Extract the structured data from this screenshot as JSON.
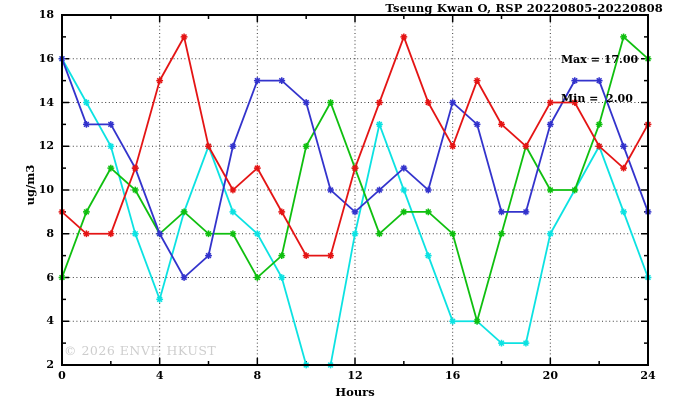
{
  "watermark": "© 2026 ENVF, HKUST",
  "annotation": {
    "max_label": "Max = 17.00",
    "min_label": "Min =  2.00"
  },
  "chart_data": {
    "type": "line",
    "title": "Tseung Kwan O, RSP 20220805-20220808",
    "xlabel": "Hours",
    "ylabel": "ug/m3",
    "xlim": [
      0,
      24
    ],
    "ylim": [
      2,
      18
    ],
    "x_major_ticks": [
      0,
      4,
      8,
      12,
      16,
      20,
      24
    ],
    "x_minor_ticks": [
      2,
      6,
      10,
      14,
      18,
      22
    ],
    "y_major_ticks": [
      2,
      4,
      6,
      8,
      10,
      12,
      14,
      16,
      18
    ],
    "y_minor_ticks": [
      3,
      5,
      7,
      9,
      11,
      13,
      15,
      17
    ],
    "grid_x": [
      4,
      8,
      12,
      16,
      20
    ],
    "grid_y": [
      4,
      6,
      8,
      10,
      12,
      14,
      16
    ],
    "grid_style": "dotted",
    "legend_position": "none",
    "marker": "asterisk",
    "stats": {
      "max": 17.0,
      "min": 2.0
    },
    "x": [
      0,
      1,
      2,
      3,
      4,
      5,
      6,
      7,
      8,
      9,
      10,
      11,
      12,
      13,
      14,
      15,
      16,
      17,
      18,
      19,
      20,
      21,
      22,
      23,
      24
    ],
    "series": [
      {
        "name": "series-cyan",
        "color": "#0ce2e2",
        "values": [
          16,
          14,
          12,
          8,
          5,
          9,
          12,
          9,
          8,
          6,
          2,
          2,
          8,
          13,
          10,
          7,
          4,
          4,
          3,
          3,
          8,
          10,
          12,
          9,
          6
        ]
      },
      {
        "name": "series-green",
        "color": "#0fbf0f",
        "values": [
          6,
          9,
          11,
          10,
          8,
          9,
          8,
          8,
          6,
          7,
          12,
          14,
          11,
          8,
          9,
          9,
          8,
          4,
          8,
          12,
          10,
          10,
          13,
          17,
          16
        ]
      },
      {
        "name": "series-blue",
        "color": "#3333cc",
        "values": [
          16,
          13,
          13,
          11,
          8,
          6,
          7,
          12,
          15,
          15,
          14,
          10,
          9,
          10,
          11,
          10,
          14,
          13,
          9,
          9,
          13,
          15,
          15,
          12,
          9
        ]
      },
      {
        "name": "series-red",
        "color": "#e41414",
        "values": [
          9,
          8,
          8,
          11,
          15,
          17,
          12,
          10,
          11,
          9,
          7,
          7,
          11,
          14,
          17,
          14,
          12,
          15,
          13,
          12,
          14,
          14,
          12,
          11,
          13
        ]
      }
    ]
  }
}
